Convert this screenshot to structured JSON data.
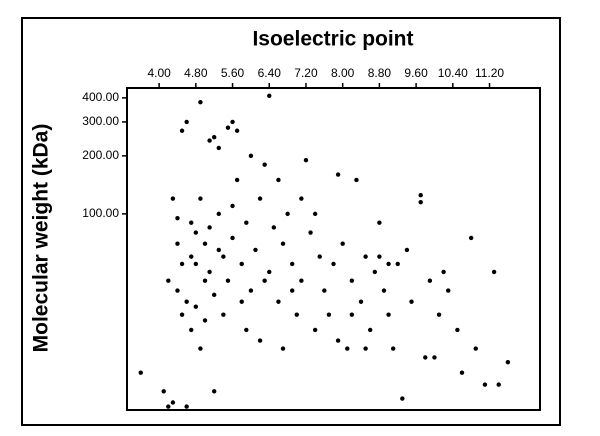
{
  "chart_data": {
    "type": "scatter",
    "x_label": "Isoelectric point",
    "y_label": "Molecular weight (kDa)",
    "log_y": true,
    "color": "#000000",
    "xlim": [
      3.3,
      12.3
    ],
    "ylim": [
      9.6,
      450
    ],
    "xticks": [
      {
        "value": 4,
        "label": "4.00"
      },
      {
        "value": 4.8,
        "label": "4.80"
      },
      {
        "value": 5.6,
        "label": "5.60"
      },
      {
        "value": 6.4,
        "label": "6.40"
      },
      {
        "value": 7.2,
        "label": "7.20"
      },
      {
        "value": 8,
        "label": "8.00"
      },
      {
        "value": 8.8,
        "label": "8.80"
      },
      {
        "value": 9.6,
        "label": "9.60"
      },
      {
        "value": 10.4,
        "label": "10.40"
      },
      {
        "value": 11.2,
        "label": "11.20"
      }
    ],
    "yticks": [
      {
        "value": 100,
        "label": "100.00"
      },
      {
        "value": 200,
        "label": "200.00"
      },
      {
        "value": 300,
        "label": "300.00"
      },
      {
        "value": 400,
        "label": "400.00"
      }
    ],
    "x": [
      3.6,
      4.1,
      4.2,
      4.4,
      4.2,
      4.3,
      4.4,
      4.5,
      4.6,
      4.6,
      4.5,
      4.7,
      4.7,
      4.8,
      4.8,
      4.9,
      4.9,
      5.0,
      5.0,
      5.1,
      5.2,
      5.3,
      5.1,
      5.2,
      5.3,
      5.4,
      5.5,
      5.6,
      5.7,
      5.5,
      5.6,
      5.7,
      5.8,
      5.9,
      6.0,
      6.1,
      6.2,
      6.3,
      6.4,
      6.4,
      6.5,
      6.6,
      6.6,
      6.7,
      6.8,
      6.9,
      7.0,
      7.1,
      7.2,
      7.3,
      7.4,
      7.5,
      7.6,
      7.8,
      7.9,
      8.0,
      8.1,
      8.2,
      8.3,
      8.4,
      8.5,
      8.6,
      8.7,
      8.8,
      8.9,
      9.0,
      9.1,
      9.2,
      9.3,
      9.4,
      9.5,
      9.7,
      9.7,
      9.8,
      9.9,
      10.1,
      10.3,
      10.5,
      10.6,
      10.8,
      10.9,
      11.1,
      11.3,
      11.4,
      11.6,
      4.3,
      4.9,
      5.2,
      4.6,
      5.0,
      4.5,
      4.8,
      5.4,
      5.9,
      6.2,
      5.6,
      4.7,
      6.0,
      7.4,
      8.5,
      7.7,
      9.0,
      10.0,
      6.9,
      7.1,
      5.3,
      5.8,
      6.3,
      4.4,
      5.1,
      6.7,
      7.9,
      8.2,
      8.8,
      10.2
    ],
    "values": [
      15,
      12,
      10,
      40,
      45,
      120,
      95,
      30,
      35,
      300,
      270,
      25,
      60,
      55,
      80,
      380,
      120,
      45,
      70,
      240,
      250,
      220,
      50,
      38,
      100,
      60,
      280,
      300,
      270,
      45,
      75,
      150,
      55,
      90,
      40,
      65,
      120,
      180,
      410,
      50,
      85,
      150,
      35,
      70,
      100,
      55,
      30,
      45,
      190,
      80,
      25,
      60,
      40,
      55,
      160,
      70,
      20,
      45,
      150,
      35,
      60,
      25,
      50,
      90,
      40,
      30,
      20,
      55,
      11,
      65,
      35,
      125,
      115,
      18,
      45,
      30,
      40,
      25,
      15,
      75,
      20,
      13,
      50,
      13,
      17,
      10.5,
      20,
      12,
      10,
      28,
      55,
      33,
      30,
      25,
      22,
      110,
      90,
      200,
      100,
      20,
      30,
      55,
      18,
      40,
      120,
      65,
      35,
      45,
      70,
      85,
      20,
      22,
      30,
      60,
      50
    ]
  }
}
